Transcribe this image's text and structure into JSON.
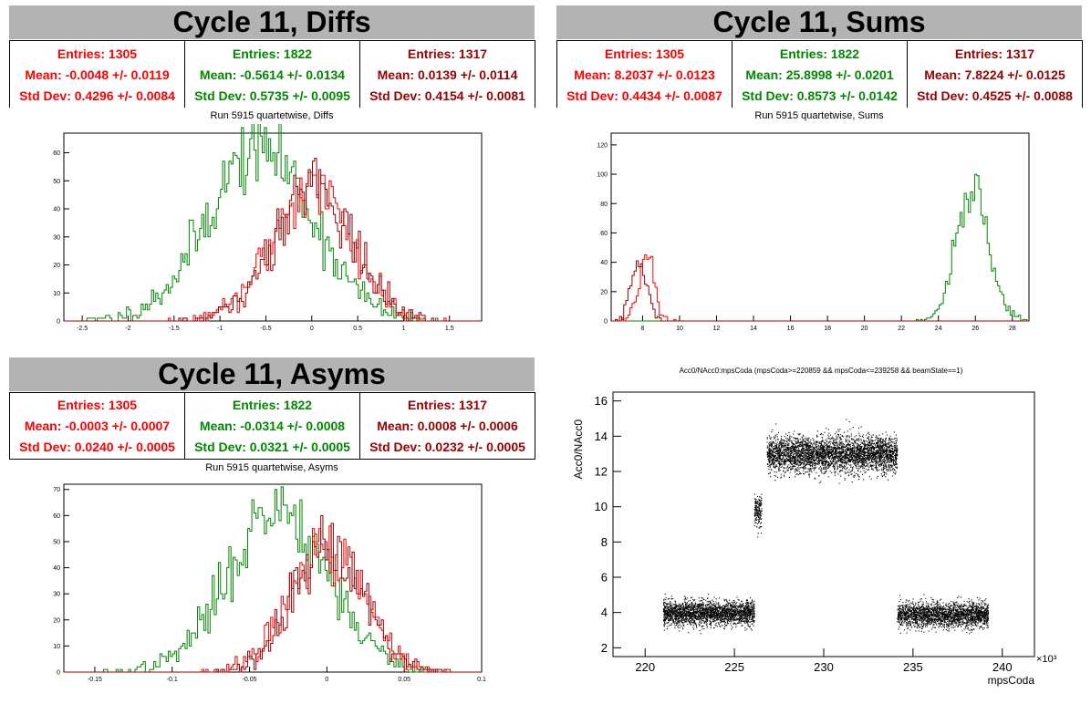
{
  "panels": [
    {
      "id": "diffs",
      "title": "Cycle 11, Diffs",
      "subtitle": "Run 5915 quartetwise, Diffs",
      "stats": [
        {
          "color": "#ff0000",
          "entries": "Entries: 1305",
          "mean": "Mean: -0.0048 +/- 0.0119",
          "std": "Std Dev: 0.4296 +/- 0.0084"
        },
        {
          "color": "#008800",
          "entries": "Entries: 1822",
          "mean": "Mean: -0.5614 +/- 0.0134",
          "std": "Std Dev: 0.5735 +/- 0.0095"
        },
        {
          "color": "#990000",
          "entries": "Entries: 1317",
          "mean": "Mean: 0.0139 +/- 0.0114",
          "std": "Std Dev: 0.4154 +/- 0.0081"
        }
      ]
    },
    {
      "id": "sums",
      "title": "Cycle 11, Sums",
      "subtitle": "Run 5915 quartetwise, Sums",
      "stats": [
        {
          "color": "#ff0000",
          "entries": "Entries: 1305",
          "mean": "Mean: 8.2037 +/- 0.0123",
          "std": "Std Dev: 0.4434 +/- 0.0087"
        },
        {
          "color": "#008800",
          "entries": "Entries: 1822",
          "mean": "Mean: 25.8998 +/- 0.0201",
          "std": "Std Dev: 0.8573 +/- 0.0142"
        },
        {
          "color": "#990000",
          "entries": "Entries: 1317",
          "mean": "Mean: 7.8224 +/- 0.0125",
          "std": "Std Dev: 0.4525 +/- 0.0088"
        }
      ]
    },
    {
      "id": "asyms",
      "title": "Cycle 11, Asyms",
      "subtitle": "Run 5915 quartetwise, Asyms",
      "stats": [
        {
          "color": "#ff0000",
          "entries": "Entries: 1305",
          "mean": "Mean: -0.0003 +/- 0.0007",
          "std": "Std Dev: 0.0240 +/- 0.0005"
        },
        {
          "color": "#008800",
          "entries": "Entries: 1822",
          "mean": "Mean: -0.0314 +/- 0.0008",
          "std": "Std Dev: 0.0321 +/- 0.0005"
        },
        {
          "color": "#990000",
          "entries": "Entries: 1317",
          "mean": "Mean: 0.0008 +/- 0.0006",
          "std": "Std Dev: 0.0232 +/- 0.0005"
        }
      ]
    }
  ],
  "scatter": {
    "title": "Acc0/NAcc0:mpsCoda (mpsCoda>=220859 && mpsCoda<=239258 && beamState==1)",
    "ylabel": "Acc0/NAcc0",
    "xlabel": "mpsCoda",
    "x_exponent": "×10³"
  },
  "chart_data": [
    {
      "type": "histogram",
      "id": "diffs",
      "xlim": [
        -2.7,
        1.85
      ],
      "ylim": [
        0,
        67
      ],
      "xticks": [
        -2.5,
        -2,
        -1.5,
        -1,
        -0.5,
        0,
        0.5,
        1,
        1.5
      ],
      "yticks": [
        0,
        10,
        20,
        30,
        40,
        50,
        60
      ],
      "series": [
        {
          "color": "#008800",
          "dist": "normal",
          "center": -0.56,
          "sigma": 0.57,
          "peak": 62
        },
        {
          "color": "#ff0000",
          "dist": "normal",
          "center": -0.005,
          "sigma": 0.43,
          "peak": 48
        },
        {
          "color": "#990000",
          "dist": "normal",
          "center": 0.014,
          "sigma": 0.42,
          "peak": 50
        }
      ]
    },
    {
      "type": "histogram",
      "id": "sums",
      "xlim": [
        6.3,
        28.9
      ],
      "ylim": [
        0,
        128
      ],
      "xticks": [
        8,
        10,
        12,
        14,
        16,
        18,
        20,
        22,
        24,
        26,
        28
      ],
      "yticks": [
        0,
        20,
        40,
        60,
        80,
        100,
        120
      ],
      "series": [
        {
          "color": "#008800",
          "dist": "normal",
          "center": 25.9,
          "sigma": 0.86,
          "peak": 90
        },
        {
          "color": "#ff0000",
          "dist": "normal",
          "center": 8.2,
          "sigma": 0.44,
          "peak": 42
        },
        {
          "color": "#990000",
          "dist": "normal",
          "center": 7.82,
          "sigma": 0.45,
          "peak": 38
        }
      ]
    },
    {
      "type": "histogram",
      "id": "asyms",
      "xlim": [
        -0.17,
        0.1
      ],
      "ylim": [
        0,
        72
      ],
      "xticks": [
        -0.15,
        -0.1,
        -0.05,
        0,
        0.05,
        0.1
      ],
      "yticks": [
        0,
        10,
        20,
        30,
        40,
        50,
        60,
        70
      ],
      "series": [
        {
          "color": "#008800",
          "dist": "normal",
          "center": -0.031,
          "sigma": 0.032,
          "peak": 63
        },
        {
          "color": "#ff0000",
          "dist": "normal",
          "center": 0.0,
          "sigma": 0.024,
          "peak": 47
        },
        {
          "color": "#990000",
          "dist": "normal",
          "center": 0.001,
          "sigma": 0.023,
          "peak": 50
        }
      ]
    },
    {
      "type": "scatter",
      "id": "scatter",
      "xlim": [
        218.2,
        241.8
      ],
      "ylim": [
        1.5,
        16.5
      ],
      "xticks": [
        220,
        225,
        230,
        235,
        240
      ],
      "yticks": [
        2,
        4,
        6,
        8,
        10,
        12,
        14,
        16
      ],
      "color": "#000000",
      "clusters": [
        {
          "x": [
            221.0,
            226.1
          ],
          "y_center": 4.0,
          "y_spread": 0.35,
          "n": 2400
        },
        {
          "x": [
            226.1,
            226.5
          ],
          "y_center": 9.8,
          "y_spread": 0.45,
          "n": 180
        },
        {
          "x": [
            226.8,
            234.1
          ],
          "y_center": 13.0,
          "y_spread": 0.5,
          "n": 3800
        },
        {
          "x": [
            234.1,
            239.2
          ],
          "y_center": 3.9,
          "y_spread": 0.35,
          "n": 2300
        }
      ]
    }
  ]
}
